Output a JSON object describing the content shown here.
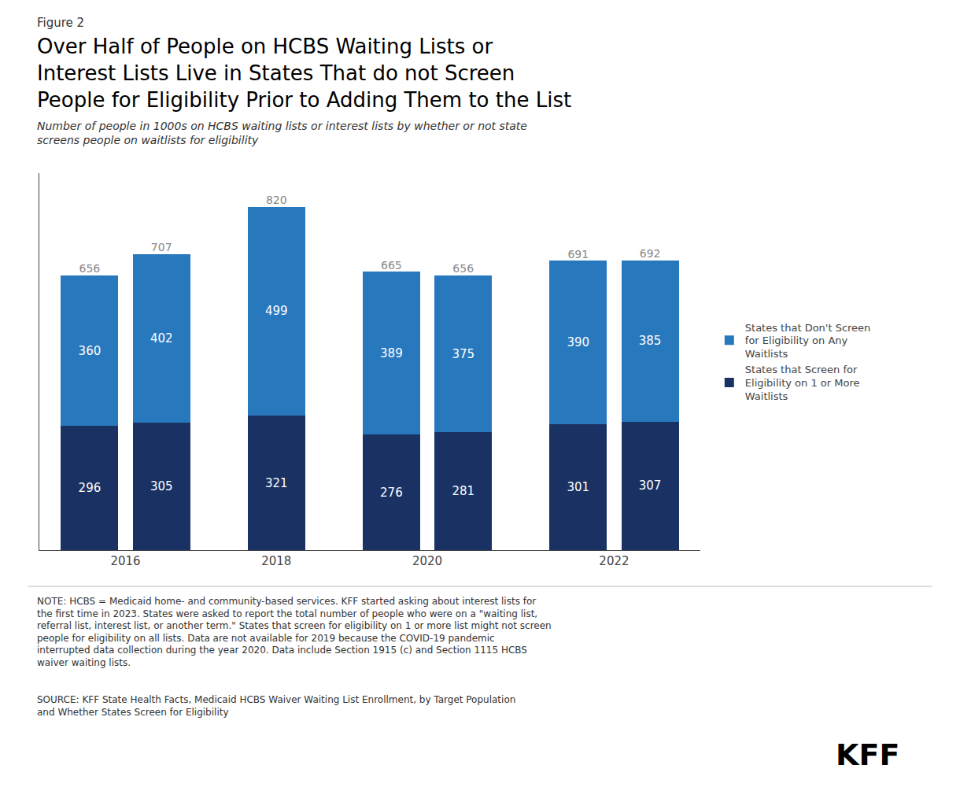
{
  "chart_data": {
    "type": "bar",
    "stacked": true,
    "title": "Over Half of People on HCBS Waiting Lists or\nInterest Lists Live in States That do not Screen\nPeople for Eligibility Prior to Adding Them to the List",
    "subtitle": "Number of people in 1000s on HCBS waiting lists or interest lists by whether or not state\nscreens people on waitlists for eligibility",
    "categories": [
      "2016",
      null,
      "2018",
      "2020",
      null,
      "2022",
      null
    ],
    "series": [
      {
        "name": "States that Screen for\nEligibility on 1 or More\nWaitlists",
        "color": "#1a3263",
        "values": [
          296,
          305,
          321,
          276,
          281,
          301,
          307
        ]
      },
      {
        "name": "States that Don't Screen\nfor Eligibility on Any\nWaitlists",
        "color": "#2878be",
        "values": [
          360,
          402,
          499,
          389,
          375,
          390,
          385
        ]
      }
    ],
    "totals": {
      "values": [
        656,
        707,
        820,
        665,
        656,
        691,
        692
      ],
      "color": "#888888"
    },
    "data_labels": true,
    "ylim": [
      0,
      900
    ],
    "tick_labels": "x",
    "grid": false,
    "legend": "right",
    "annotations": [
      "Figure 2",
      "NOTE: HCBS = Medicaid home- and community-based services. KFF started asking about interest lists for\nthe first time in 2023. States were asked to report the total number of people who were on a \"waiting list,\nreferral list, interest list, or another term.\" States that screen for eligibility on 1 or more list might not screen\npeople for eligibility on all lists. Data are not available for 2019 because the COVID-19 pandemic\ninterrupted data collection during the year 2020. Data include Section 1915 (c) and Section 1115 HCBS\nwaiver waiting lists.",
      "SOURCE: KFF State Health Facts, Medicaid HCBS Waiver Waiting List Enrollment, by Target Population\nand Whether States Screen for Eligibility",
      "KFF"
    ]
  }
}
